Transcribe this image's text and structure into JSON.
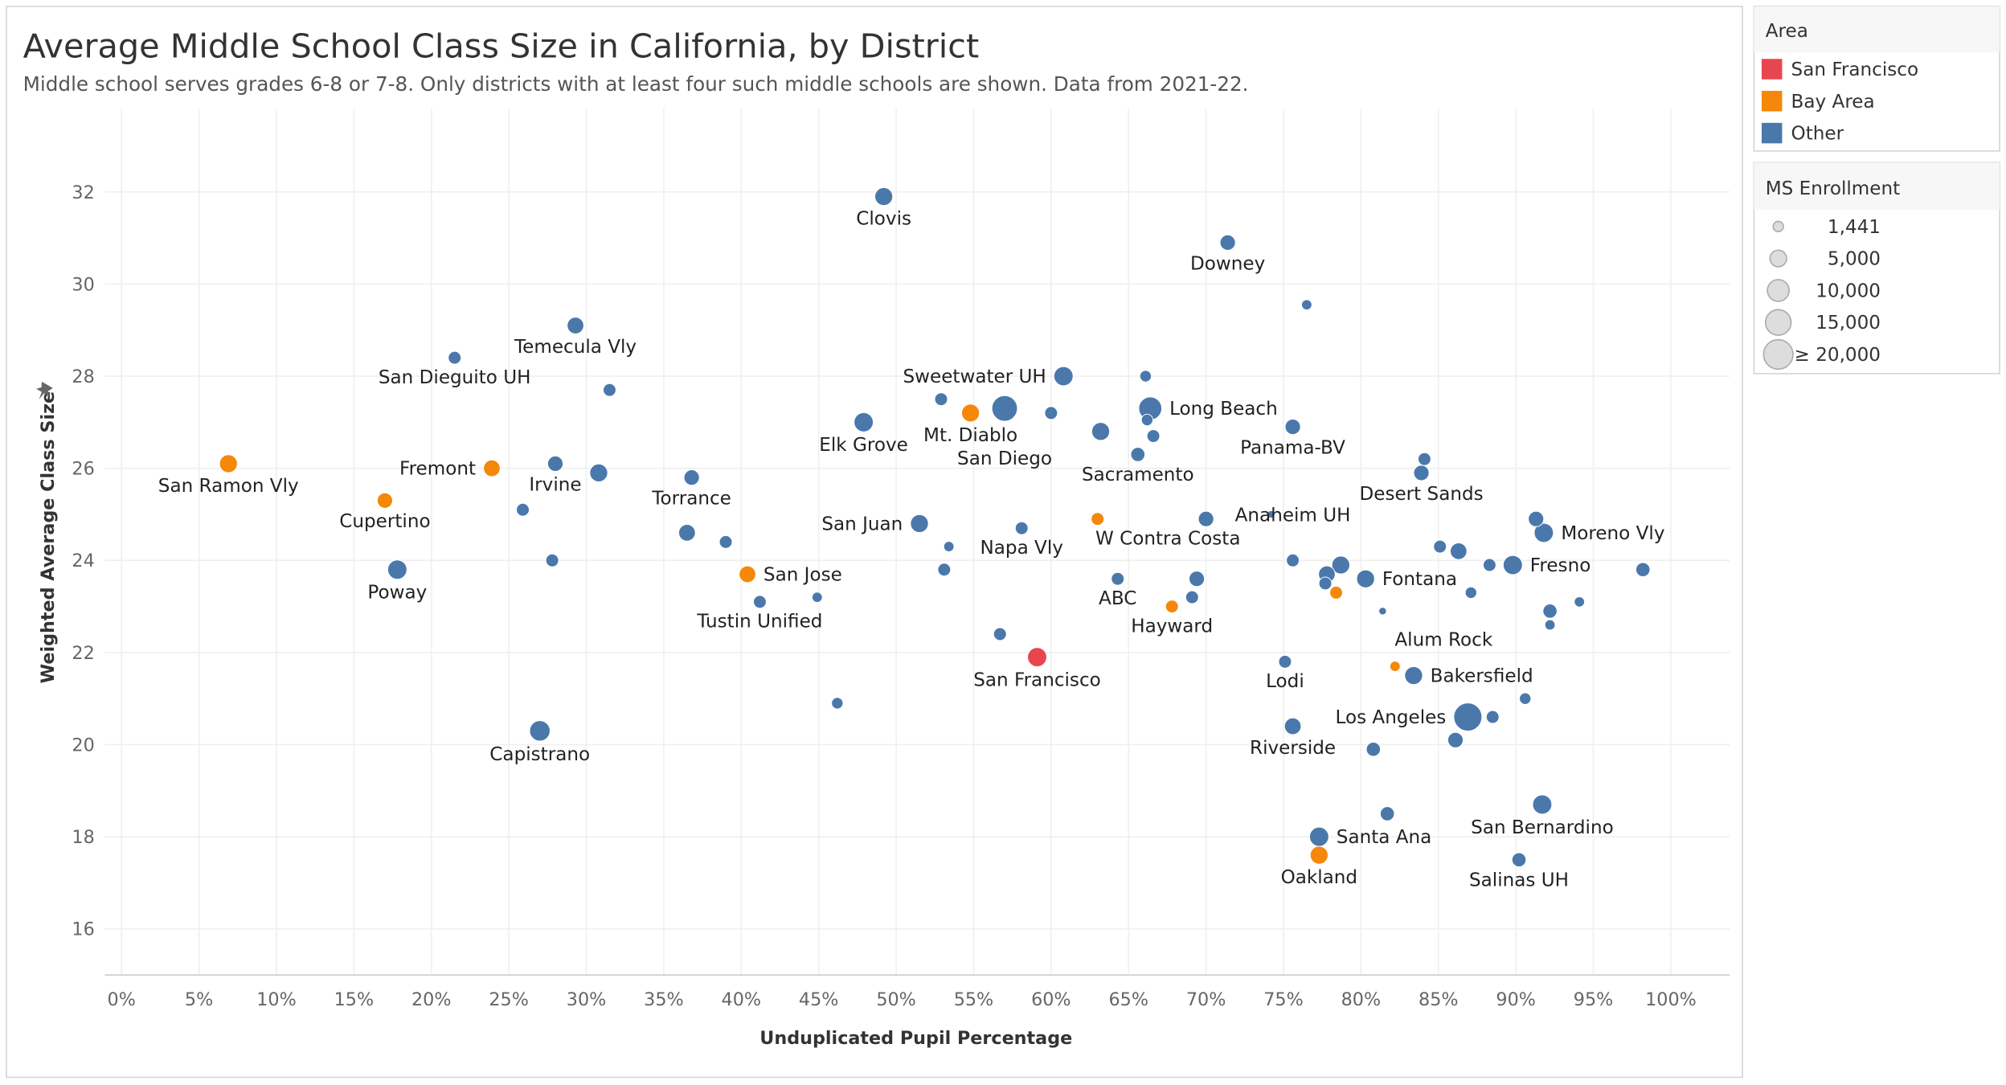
{
  "header": {
    "title": "Average Middle School Class Size in California, by District",
    "subtitle": "Middle school serves grades 6-8 or 7-8. Only districts with at least four such middle schools are shown. Data from 2021-22."
  },
  "legend_area": {
    "title": "Area",
    "items": [
      {
        "label": "San Francisco",
        "color": "#E8464F"
      },
      {
        "label": "Bay Area",
        "color": "#F5870A"
      },
      {
        "label": "Other",
        "color": "#4A78AB"
      }
    ]
  },
  "legend_size": {
    "title": "MS Enrollment",
    "items": [
      {
        "label": "1,441",
        "value": 1441
      },
      {
        "label": "5,000",
        "value": 5000
      },
      {
        "label": "10,000",
        "value": 10000
      },
      {
        "label": "15,000",
        "value": 15000
      },
      {
        "label": "≥ 20,000",
        "value": 20000
      }
    ]
  },
  "chart_data": {
    "type": "scatter",
    "title": "Average Middle School Class Size in California, by District",
    "xlabel": "Unduplicated Pupil Percentage",
    "ylabel": "Weighted Average Class Size",
    "xlim": [
      -0.5,
      104
    ],
    "ylim": [
      15,
      33
    ],
    "xticks": [
      0,
      5,
      10,
      15,
      20,
      25,
      30,
      35,
      40,
      45,
      50,
      55,
      60,
      65,
      70,
      75,
      80,
      85,
      90,
      95,
      100
    ],
    "xtick_labels": [
      "0%",
      "5%",
      "10%",
      "15%",
      "20%",
      "25%",
      "30%",
      "35%",
      "40%",
      "45%",
      "50%",
      "55%",
      "60%",
      "65%",
      "70%",
      "75%",
      "80%",
      "85%",
      "90%",
      "95%",
      "100%"
    ],
    "yticks": [
      16,
      18,
      20,
      22,
      24,
      26,
      28,
      30,
      32
    ],
    "ytick_labels": [
      "16",
      "18",
      "20",
      "22",
      "24",
      "26",
      "28",
      "30",
      "32"
    ],
    "grid": true,
    "points": [
      {
        "label": "Clovis",
        "x": 49.2,
        "y": 31.9,
        "enrollment": 12700,
        "area": "Other",
        "label_pos": "below"
      },
      {
        "label": "Downey",
        "x": 71.4,
        "y": 30.9,
        "enrollment": 9400,
        "area": "Other",
        "label_pos": "below"
      },
      {
        "label": "",
        "x": 76.5,
        "y": 29.55,
        "enrollment": 4200,
        "area": "Other"
      },
      {
        "label": "Temecula Vly",
        "x": 29.3,
        "y": 29.1,
        "enrollment": 11000,
        "area": "Other",
        "label_pos": "below"
      },
      {
        "label": "San Dieguito UH",
        "x": 21.5,
        "y": 28.4,
        "enrollment": 6500,
        "area": "Other",
        "label_pos": "below"
      },
      {
        "label": "",
        "x": 31.5,
        "y": 27.7,
        "enrollment": 6500,
        "area": "Other"
      },
      {
        "label": "Sweetwater UH",
        "x": 60.8,
        "y": 28.0,
        "enrollment": 14600,
        "area": "Other",
        "label_pos": "left"
      },
      {
        "label": "",
        "x": 66.1,
        "y": 28.0,
        "enrollment": 5300,
        "area": "Other"
      },
      {
        "label": "",
        "x": 52.9,
        "y": 27.5,
        "enrollment": 6500,
        "area": "Other"
      },
      {
        "label": "Mt. Diablo",
        "x": 54.8,
        "y": 27.2,
        "enrollment": 12700,
        "area": "Bay Area",
        "label_pos": "below"
      },
      {
        "label": "San Diego",
        "x": 57.0,
        "y": 27.3,
        "enrollment": 26000,
        "area": "Other",
        "label_pos": "below"
      },
      {
        "label": "",
        "x": 60.0,
        "y": 27.2,
        "enrollment": 6500,
        "area": "Other"
      },
      {
        "label": "",
        "x": 66.2,
        "y": 27.05,
        "enrollment": 5300,
        "area": "Other"
      },
      {
        "label": "Long Beach",
        "x": 66.4,
        "y": 27.3,
        "enrollment": 21000,
        "area": "Other",
        "label_pos": "right"
      },
      {
        "label": "Elk Grove",
        "x": 47.9,
        "y": 27.0,
        "enrollment": 14600,
        "area": "Other",
        "label_pos": "below"
      },
      {
        "label": "",
        "x": 63.2,
        "y": 26.8,
        "enrollment": 12700,
        "area": "Other"
      },
      {
        "label": "",
        "x": 66.6,
        "y": 26.7,
        "enrollment": 6500,
        "area": "Other"
      },
      {
        "label": "Panama-BV",
        "x": 75.6,
        "y": 26.9,
        "enrollment": 9400,
        "area": "Other",
        "label_pos": "below"
      },
      {
        "label": "Sacramento",
        "x": 65.6,
        "y": 26.3,
        "enrollment": 7900,
        "area": "Other",
        "label_pos": "below"
      },
      {
        "label": "",
        "x": 84.1,
        "y": 26.2,
        "enrollment": 6500,
        "area": "Other"
      },
      {
        "label": "Desert Sands",
        "x": 83.9,
        "y": 25.9,
        "enrollment": 9400,
        "area": "Other",
        "label_pos": "below"
      },
      {
        "label": "San Ramon Vly",
        "x": 6.9,
        "y": 26.1,
        "enrollment": 12700,
        "area": "Bay Area",
        "label_pos": "below"
      },
      {
        "label": "Fremont",
        "x": 23.9,
        "y": 26.0,
        "enrollment": 11000,
        "area": "Bay Area",
        "label_pos": "left"
      },
      {
        "label": "Irvine",
        "x": 28.0,
        "y": 26.1,
        "enrollment": 9400,
        "area": "Other",
        "label_pos": "below"
      },
      {
        "label": "",
        "x": 30.8,
        "y": 25.9,
        "enrollment": 12700,
        "area": "Other"
      },
      {
        "label": "Torrance",
        "x": 36.8,
        "y": 25.8,
        "enrollment": 9400,
        "area": "Other",
        "label_pos": "below"
      },
      {
        "label": "Cupertino",
        "x": 17.0,
        "y": 25.3,
        "enrollment": 9400,
        "area": "Bay Area",
        "label_pos": "below"
      },
      {
        "label": "",
        "x": 25.9,
        "y": 25.1,
        "enrollment": 6500,
        "area": "Other"
      },
      {
        "label": "San Juan",
        "x": 51.5,
        "y": 24.8,
        "enrollment": 12700,
        "area": "Other",
        "label_pos": "left"
      },
      {
        "label": "Napa Vly",
        "x": 58.1,
        "y": 24.7,
        "enrollment": 6500,
        "area": "Other",
        "label_pos": "below"
      },
      {
        "label": "",
        "x": 53.4,
        "y": 24.3,
        "enrollment": 4200,
        "area": "Other"
      },
      {
        "label": "W Contra Costa",
        "x": 63.0,
        "y": 24.9,
        "enrollment": 6500,
        "area": "Bay Area",
        "label_pos": "below-right"
      },
      {
        "label": "",
        "x": 70.0,
        "y": 24.9,
        "enrollment": 9400,
        "area": "Other"
      },
      {
        "label": "",
        "x": 74.2,
        "y": 25.0,
        "enrollment": 2300,
        "area": "Other"
      },
      {
        "label": "",
        "x": 91.3,
        "y": 24.9,
        "enrollment": 9400,
        "area": "Other"
      },
      {
        "label": "Moreno Vly",
        "x": 91.8,
        "y": 24.6,
        "enrollment": 14600,
        "area": "Other",
        "label_pos": "right"
      },
      {
        "label": "",
        "x": 36.5,
        "y": 24.6,
        "enrollment": 11000,
        "area": "Other"
      },
      {
        "label": "",
        "x": 39.0,
        "y": 24.4,
        "enrollment": 6500,
        "area": "Other"
      },
      {
        "label": "",
        "x": 27.8,
        "y": 24.0,
        "enrollment": 6500,
        "area": "Other"
      },
      {
        "label": "Poway",
        "x": 17.8,
        "y": 23.8,
        "enrollment": 14600,
        "area": "Other",
        "label_pos": "below"
      },
      {
        "label": "San Jose",
        "x": 40.4,
        "y": 23.7,
        "enrollment": 11000,
        "area": "Bay Area",
        "label_pos": "right"
      },
      {
        "label": "",
        "x": 53.1,
        "y": 23.8,
        "enrollment": 6500,
        "area": "Other"
      },
      {
        "label": "Anaheim UH",
        "x": 75.6,
        "y": 24.0,
        "enrollment": 6500,
        "area": "Other",
        "label_pos": "above"
      },
      {
        "label": "",
        "x": 78.7,
        "y": 23.9,
        "enrollment": 12700,
        "area": "Other"
      },
      {
        "label": "",
        "x": 77.8,
        "y": 23.7,
        "enrollment": 11000,
        "area": "Other"
      },
      {
        "label": "",
        "x": 77.7,
        "y": 23.5,
        "enrollment": 6500,
        "area": "Other"
      },
      {
        "label": "Fontana",
        "x": 80.3,
        "y": 23.6,
        "enrollment": 12700,
        "area": "Other",
        "label_pos": "right"
      },
      {
        "label": "",
        "x": 78.4,
        "y": 23.3,
        "enrollment": 6500,
        "area": "Bay Area"
      },
      {
        "label": "",
        "x": 85.1,
        "y": 24.3,
        "enrollment": 6500,
        "area": "Other"
      },
      {
        "label": "",
        "x": 86.3,
        "y": 24.2,
        "enrollment": 11000,
        "area": "Other"
      },
      {
        "label": "",
        "x": 88.3,
        "y": 23.9,
        "enrollment": 6500,
        "area": "Other"
      },
      {
        "label": "Fresno",
        "x": 89.8,
        "y": 23.9,
        "enrollment": 14600,
        "area": "Other",
        "label_pos": "right"
      },
      {
        "label": "",
        "x": 98.2,
        "y": 23.8,
        "enrollment": 7900,
        "area": "Other"
      },
      {
        "label": "",
        "x": 87.1,
        "y": 23.3,
        "enrollment": 5300,
        "area": "Other"
      },
      {
        "label": "",
        "x": 92.2,
        "y": 22.9,
        "enrollment": 7900,
        "area": "Other"
      },
      {
        "label": "",
        "x": 92.2,
        "y": 22.6,
        "enrollment": 4200,
        "area": "Other"
      },
      {
        "label": "",
        "x": 94.1,
        "y": 23.1,
        "enrollment": 4200,
        "area": "Other"
      },
      {
        "label": "",
        "x": 81.4,
        "y": 22.9,
        "enrollment": 2300,
        "area": "Other"
      },
      {
        "label": "ABC",
        "x": 64.3,
        "y": 23.6,
        "enrollment": 6500,
        "area": "Other",
        "label_pos": "below"
      },
      {
        "label": "",
        "x": 69.4,
        "y": 23.6,
        "enrollment": 9400,
        "area": "Other"
      },
      {
        "label": "",
        "x": 69.1,
        "y": 23.2,
        "enrollment": 6500,
        "area": "Other"
      },
      {
        "label": "Hayward",
        "x": 67.8,
        "y": 23.0,
        "enrollment": 6500,
        "area": "Bay Area",
        "label_pos": "below"
      },
      {
        "label": "Tustin Unified",
        "x": 41.2,
        "y": 23.1,
        "enrollment": 6500,
        "area": "Other",
        "label_pos": "below"
      },
      {
        "label": "",
        "x": 44.9,
        "y": 23.2,
        "enrollment": 4200,
        "area": "Other"
      },
      {
        "label": "",
        "x": 56.7,
        "y": 22.4,
        "enrollment": 6500,
        "area": "Other"
      },
      {
        "label": "San Francisco",
        "x": 59.1,
        "y": 21.9,
        "enrollment": 14600,
        "area": "San Francisco",
        "label_pos": "below"
      },
      {
        "label": "Lodi",
        "x": 75.1,
        "y": 21.8,
        "enrollment": 6500,
        "area": "Other",
        "label_pos": "below"
      },
      {
        "label": "Alum Rock",
        "x": 82.2,
        "y": 21.7,
        "enrollment": 4200,
        "area": "Bay Area",
        "label_pos": "above-right"
      },
      {
        "label": "Bakersfield",
        "x": 83.4,
        "y": 21.5,
        "enrollment": 12700,
        "area": "Other",
        "label_pos": "right"
      },
      {
        "label": "",
        "x": 90.6,
        "y": 21.0,
        "enrollment": 5300,
        "area": "Other"
      },
      {
        "label": "",
        "x": 46.2,
        "y": 20.9,
        "enrollment": 5300,
        "area": "Other"
      },
      {
        "label": "Los Angeles",
        "x": 86.9,
        "y": 20.6,
        "enrollment": 31500,
        "area": "Other",
        "label_pos": "left"
      },
      {
        "label": "",
        "x": 88.5,
        "y": 20.6,
        "enrollment": 6500,
        "area": "Other"
      },
      {
        "label": "",
        "x": 86.1,
        "y": 20.1,
        "enrollment": 9400,
        "area": "Other"
      },
      {
        "label": "Riverside",
        "x": 75.6,
        "y": 20.4,
        "enrollment": 11000,
        "area": "Other",
        "label_pos": "below"
      },
      {
        "label": "",
        "x": 80.8,
        "y": 19.9,
        "enrollment": 7900,
        "area": "Other"
      },
      {
        "label": "Capistrano",
        "x": 27.0,
        "y": 20.3,
        "enrollment": 16600,
        "area": "Other",
        "label_pos": "below"
      },
      {
        "label": "",
        "x": 81.7,
        "y": 18.5,
        "enrollment": 7900,
        "area": "Other"
      },
      {
        "label": "San Bernardino",
        "x": 91.7,
        "y": 18.7,
        "enrollment": 14600,
        "area": "Other",
        "label_pos": "below"
      },
      {
        "label": "Santa Ana",
        "x": 77.3,
        "y": 18.0,
        "enrollment": 14600,
        "area": "Other",
        "label_pos": "right"
      },
      {
        "label": "Oakland",
        "x": 77.3,
        "y": 17.6,
        "enrollment": 12700,
        "area": "Bay Area",
        "label_pos": "below"
      },
      {
        "label": "Salinas UH",
        "x": 90.2,
        "y": 17.5,
        "enrollment": 7900,
        "area": "Other",
        "label_pos": "below"
      }
    ]
  }
}
